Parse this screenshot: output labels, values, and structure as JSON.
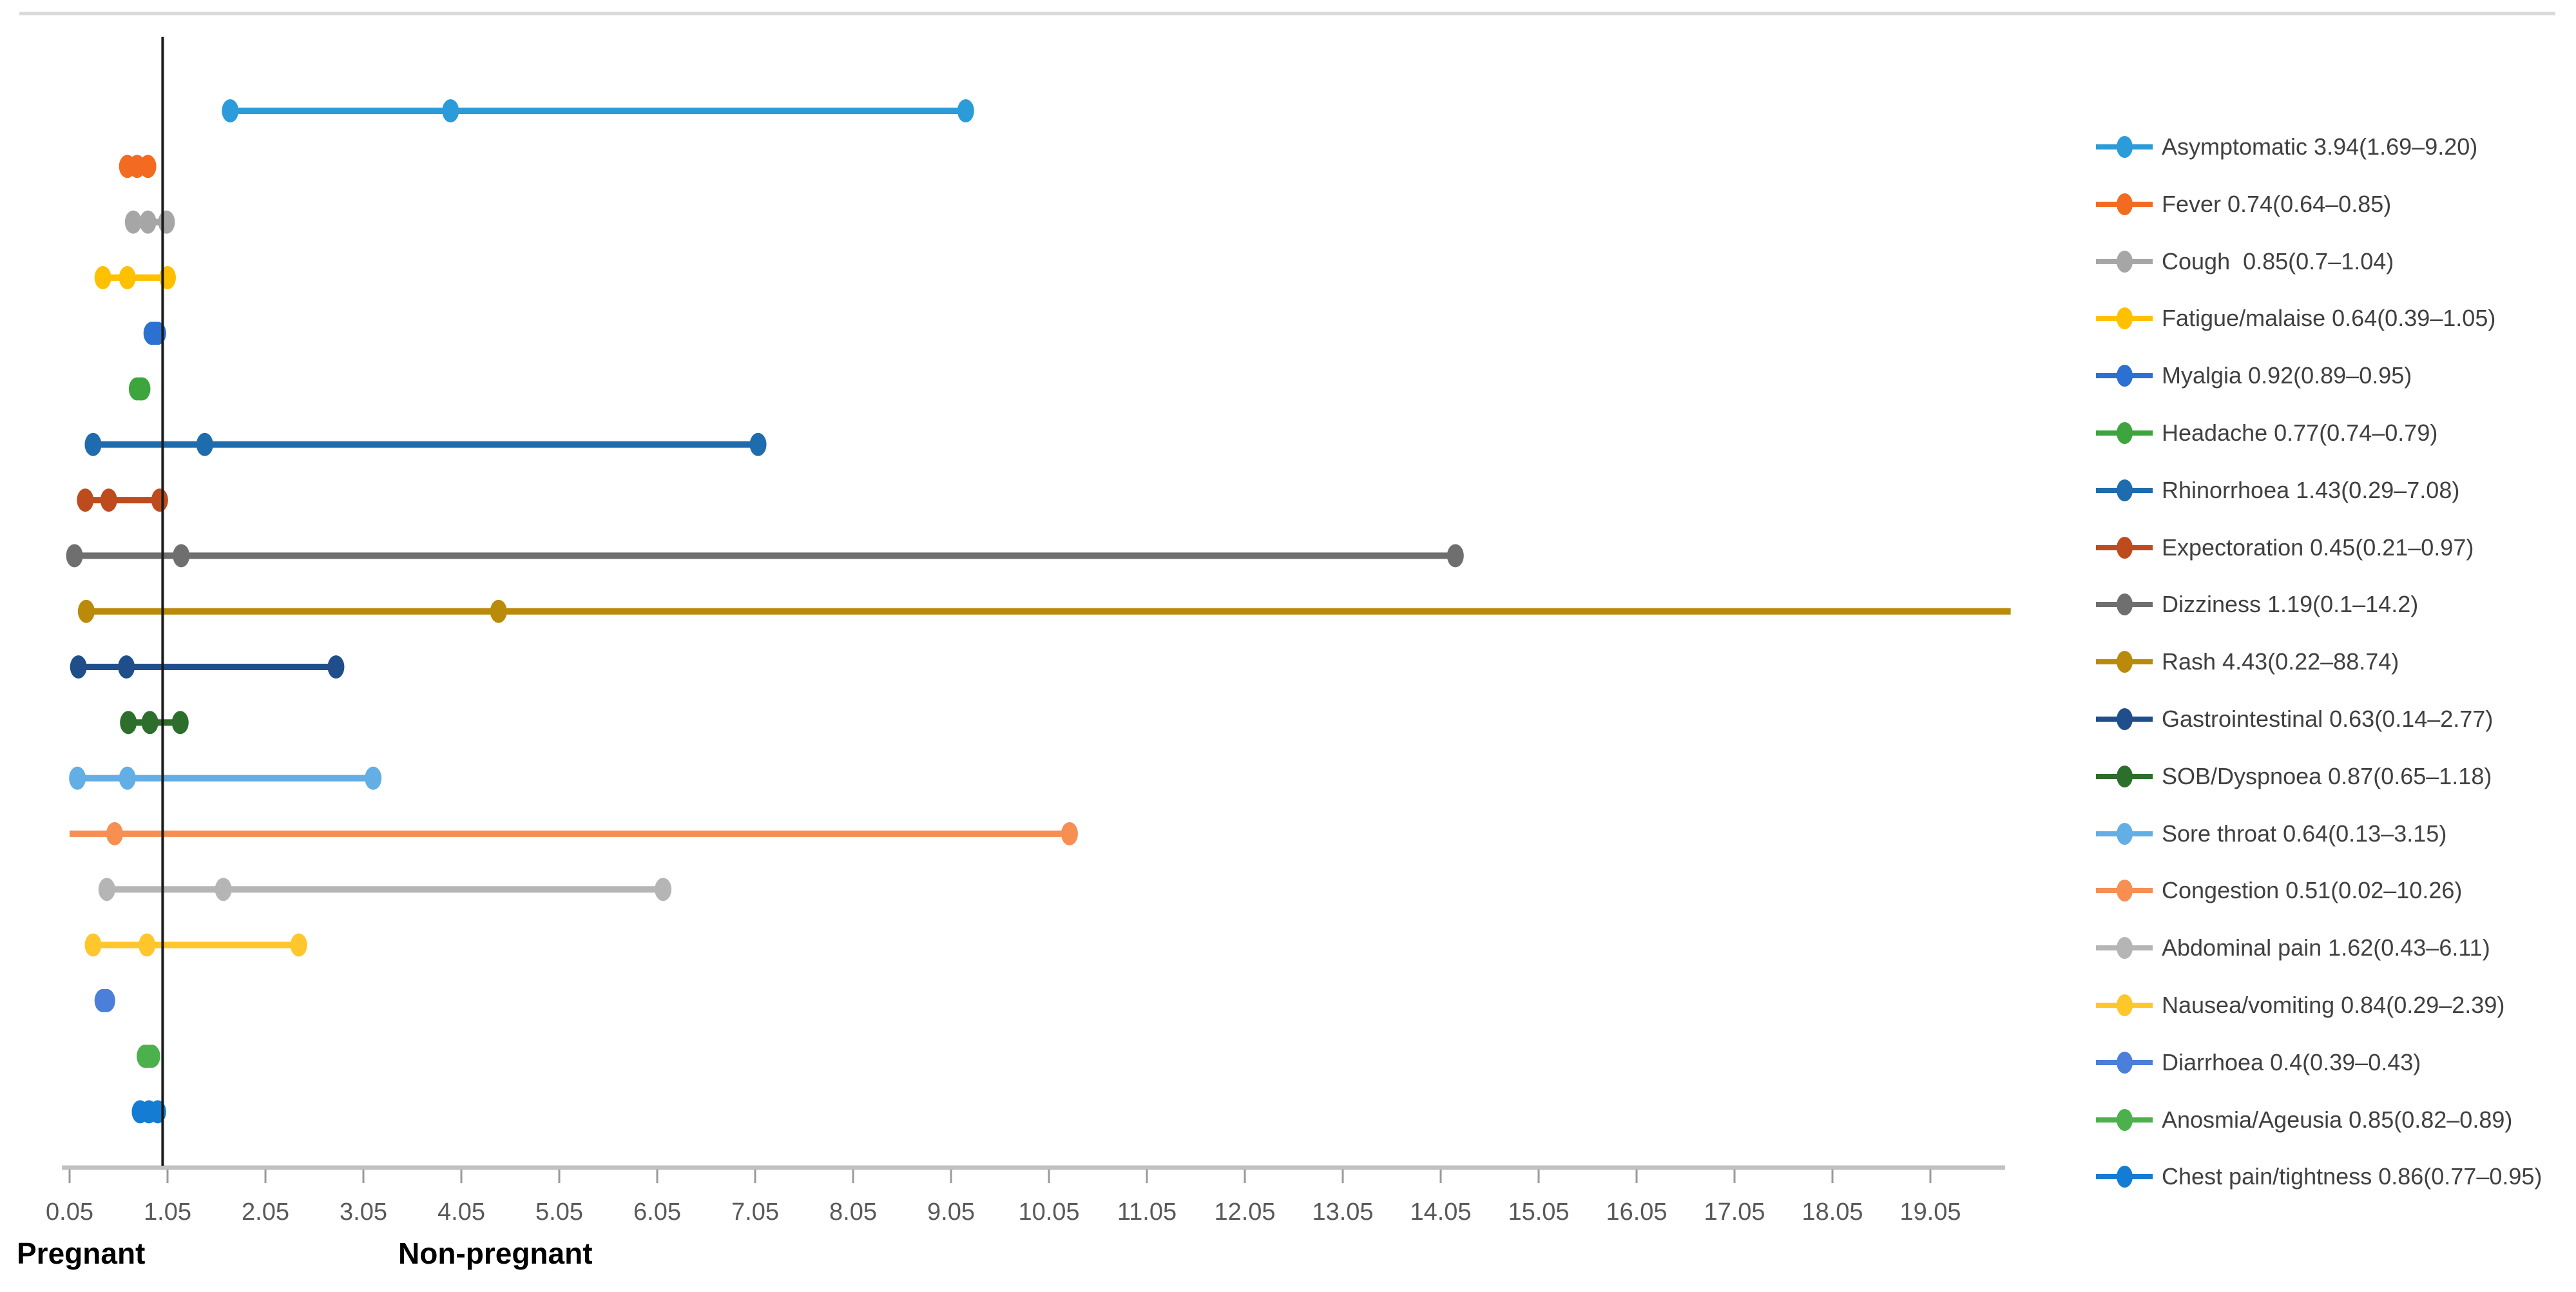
{
  "chart_data": {
    "type": "scatter",
    "subtype": "forest-plot-odds-ratio-ci",
    "title": "",
    "xlabel": "",
    "ylabel": "",
    "xlim": [
      0.05,
      19.87
    ],
    "grid": false,
    "legend_position": "right",
    "reference_line_x": 1.0,
    "x_tick_labels": [
      "0.05",
      "1.05",
      "2.05",
      "3.05",
      "4.05",
      "5.05",
      "6.05",
      "7.05",
      "8.05",
      "9.05",
      "10.05",
      "11.05",
      "12.05",
      "13.05",
      "14.05",
      "15.05",
      "16.05",
      "17.05",
      "18.05",
      "19.05"
    ],
    "group_labels": {
      "left": "Pregnant",
      "right": "Non-pregnant"
    },
    "series": [
      {
        "name": "Asymptomatic",
        "display": "Asymptomatic 3.94(1.69–9.20)",
        "or": 3.94,
        "ci_low": 1.69,
        "ci_high": 9.2,
        "color": "#2B9BD9"
      },
      {
        "name": "Fever",
        "display": "Fever 0.74(0.64–0.85)",
        "or": 0.74,
        "ci_low": 0.64,
        "ci_high": 0.85,
        "color": "#F26B21"
      },
      {
        "name": "Cough",
        "display": "Cough  0.85(0.7–1.04)",
        "or": 0.85,
        "ci_low": 0.7,
        "ci_high": 1.04,
        "color": "#A6A6A6"
      },
      {
        "name": "Fatigue/malaise",
        "display": "Fatigue/malaise 0.64(0.39–1.05)",
        "or": 0.64,
        "ci_low": 0.39,
        "ci_high": 1.05,
        "color": "#FFC000"
      },
      {
        "name": "Myalgia",
        "display": "Myalgia 0.92(0.89–0.95)",
        "or": 0.92,
        "ci_low": 0.89,
        "ci_high": 0.95,
        "color": "#2C70D2"
      },
      {
        "name": "Headache",
        "display": "Headache 0.77(0.74–0.79)",
        "or": 0.77,
        "ci_low": 0.74,
        "ci_high": 0.79,
        "color": "#3DA53D"
      },
      {
        "name": "Rhinorrhoea",
        "display": "Rhinorrhoea 1.43(0.29–7.08)",
        "or": 1.43,
        "ci_low": 0.29,
        "ci_high": 7.08,
        "color": "#1E6CAE"
      },
      {
        "name": "Expectoration",
        "display": "Expectoration 0.45(0.21–0.97)",
        "or": 0.45,
        "ci_low": 0.21,
        "ci_high": 0.97,
        "color": "#BE4B1E"
      },
      {
        "name": "Dizziness",
        "display": "Dizziness 1.19(0.1–14.2)",
        "or": 1.19,
        "ci_low": 0.1,
        "ci_high": 14.2,
        "color": "#6F6F6F"
      },
      {
        "name": "Rash",
        "display": "Rash 4.43(0.22–88.74)",
        "or": 4.43,
        "ci_low": 0.22,
        "ci_high": 88.74,
        "color": "#BA8A0B"
      },
      {
        "name": "Gastrointestinal",
        "display": "Gastrointestinal 0.63(0.14–2.77)",
        "or": 0.63,
        "ci_low": 0.14,
        "ci_high": 2.77,
        "color": "#1F4E8A"
      },
      {
        "name": "SOB/Dyspnoea",
        "display": "SOB/Dyspnoea 0.87(0.65–1.18)",
        "or": 0.87,
        "ci_low": 0.65,
        "ci_high": 1.18,
        "color": "#2D6E2D"
      },
      {
        "name": "Sore throat",
        "display": "Sore throat 0.64(0.13–3.15)",
        "or": 0.64,
        "ci_low": 0.13,
        "ci_high": 3.15,
        "color": "#63AEE4"
      },
      {
        "name": "Congestion",
        "display": "Congestion 0.51(0.02–10.26)",
        "or": 0.51,
        "ci_low": 0.02,
        "ci_high": 10.26,
        "color": "#F78E52"
      },
      {
        "name": "Abdominal pain",
        "display": "Abdominal pain 1.62(0.43–6.11)",
        "or": 1.62,
        "ci_low": 0.43,
        "ci_high": 6.11,
        "color": "#B5B5B5"
      },
      {
        "name": "Nausea/vomiting",
        "display": "Nausea/vomiting 0.84(0.29–2.39)",
        "or": 0.84,
        "ci_low": 0.29,
        "ci_high": 2.39,
        "color": "#FFC72C"
      },
      {
        "name": "Diarrhoea",
        "display": "Diarrhoea 0.4(0.39–0.43)",
        "or": 0.4,
        "ci_low": 0.39,
        "ci_high": 0.43,
        "color": "#4B7FD9"
      },
      {
        "name": "Anosmia/Ageusia",
        "display": "Anosmia/Ageusia 0.85(0.82–0.89)",
        "or": 0.85,
        "ci_low": 0.82,
        "ci_high": 0.89,
        "color": "#4CB04C"
      },
      {
        "name": "Chest pain/tightness",
        "display": "Chest pain/tightness 0.86(0.77–0.95)",
        "or": 0.86,
        "ci_low": 0.77,
        "ci_high": 0.95,
        "color": "#147CD2"
      }
    ],
    "style_colors": {
      "axis_line": "#C1C1C1",
      "tick": "#9A9A9A",
      "tick_label": "#595959",
      "reference_line": "#1A1A1A",
      "top_divider": "#D9D9D9",
      "legend_text": "#404040",
      "background": "#FFFFFF"
    }
  }
}
